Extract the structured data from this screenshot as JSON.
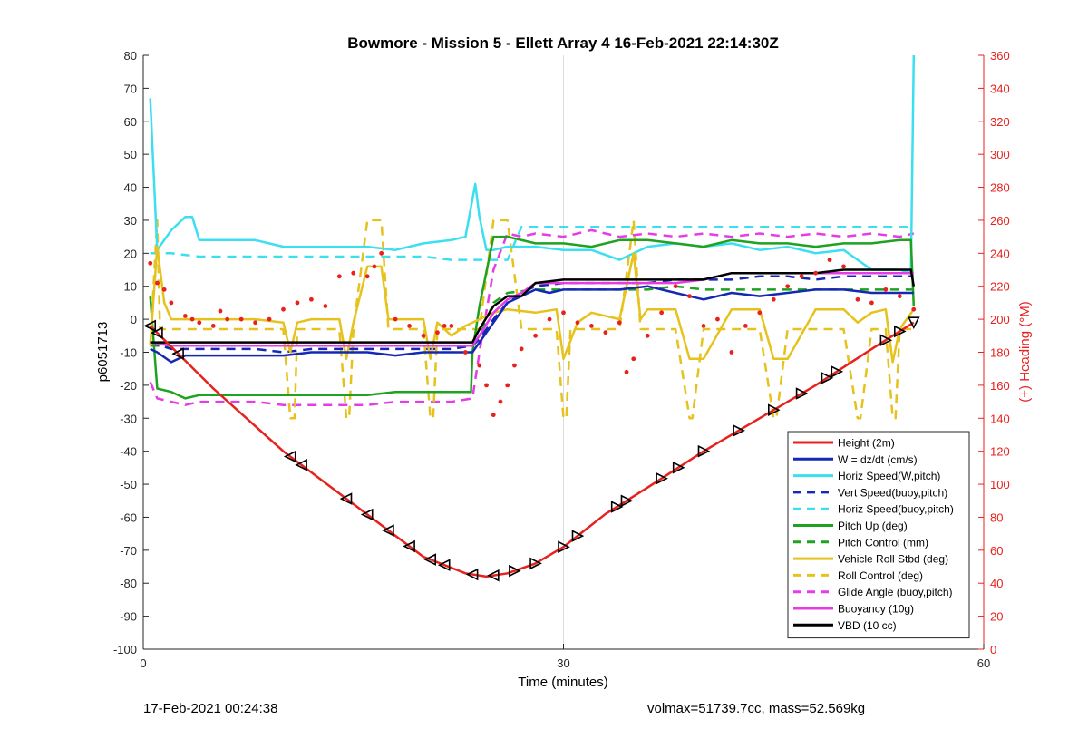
{
  "chart_data": {
    "type": "line",
    "title": "Bowmore - Mission 5 - Ellett Array 4 16-Feb-2021 22:14:30Z",
    "xlabel": "Time (minutes)",
    "ylabel": "p6051713",
    "y2label": "(+) Heading (°M)",
    "xlim": [
      0,
      60
    ],
    "ylim": [
      -100,
      80
    ],
    "y2lim": [
      0,
      360
    ],
    "xticks": [
      "0",
      "30",
      "60"
    ],
    "yticks": [
      "80",
      "70",
      "60",
      "50",
      "40",
      "30",
      "20",
      "10",
      "0",
      "-10",
      "-20",
      "-30",
      "-40",
      "-50",
      "-60",
      "-70",
      "-80",
      "-90",
      "-100"
    ],
    "y2ticks": [
      "360",
      "340",
      "320",
      "300",
      "280",
      "260",
      "240",
      "220",
      "200",
      "180",
      "160",
      "140",
      "120",
      "100",
      "80",
      "60",
      "40",
      "20",
      "0"
    ],
    "grid": "x-only",
    "legend_position": "bottom-right",
    "colors": {
      "axis_right": "#e8211d",
      "height": "#e8211d",
      "w": "#1428b4",
      "horiz": "#3cdff0",
      "pitch": "#1fa21f",
      "roll": "#e6c21e",
      "glide": "#e63ce6",
      "vbd": "#000000",
      "heading": "#e8211d"
    },
    "series": [
      {
        "name": "Height (2m)",
        "style": "solid",
        "color": "#e8211d",
        "x": [
          0.5,
          5,
          10,
          15,
          20,
          23,
          24.5,
          26,
          28,
          30,
          33,
          36,
          40,
          44,
          48,
          52,
          55
        ],
        "y": [
          -2,
          -21,
          -40,
          -56,
          -72,
          -77,
          -78,
          -77,
          -74,
          -69,
          -59,
          -51,
          -40,
          -30,
          -20,
          -9,
          -1
        ]
      },
      {
        "name": "W = dz/dt (cm/s)",
        "style": "solid",
        "color": "#1428b4",
        "x": [
          0.5,
          1,
          2,
          3,
          4,
          6,
          8,
          10,
          12,
          14,
          16,
          18,
          20,
          22,
          23.5,
          24,
          25,
          26,
          27,
          28,
          29,
          30,
          32,
          34,
          36,
          38,
          40,
          42,
          44,
          46,
          48,
          50,
          52,
          54,
          55
        ],
        "y": [
          -9,
          -10,
          -13,
          -11,
          -11,
          -11,
          -11,
          -11,
          -10,
          -10,
          -10,
          -11,
          -10,
          -10,
          -10,
          -7,
          -1,
          5,
          7,
          9,
          8,
          9,
          9,
          9,
          10,
          8,
          6,
          8,
          7,
          8,
          9,
          9,
          8,
          8,
          8
        ]
      },
      {
        "name": "Horiz Speed(W,pitch)",
        "style": "solid",
        "color": "#3cdff0",
        "x": [
          0.5,
          1,
          2,
          3,
          3.5,
          4,
          6,
          8,
          10,
          12,
          14,
          16,
          18,
          20,
          22,
          23,
          23.7,
          24,
          24.5,
          25,
          26,
          28,
          30,
          32,
          34,
          36,
          38,
          40,
          42,
          44,
          46,
          48,
          50,
          52,
          54,
          54.8,
          55
        ],
        "y": [
          67,
          21,
          27,
          31,
          31,
          24,
          24,
          24,
          22,
          22,
          22,
          22,
          21,
          23,
          24,
          25,
          41,
          31,
          21,
          21,
          22,
          22,
          21,
          21,
          18,
          22,
          23,
          22,
          23,
          21,
          22,
          20,
          21,
          15,
          15,
          14,
          80
        ]
      },
      {
        "name": "Vert Speed(buoy,pitch)",
        "style": "dash",
        "color": "#1428b4",
        "x": [
          0.5,
          2,
          4,
          6,
          8,
          10,
          12,
          14,
          16,
          18,
          20,
          22,
          23.5,
          24,
          25,
          26,
          27,
          28,
          30,
          32,
          34,
          36,
          38,
          40,
          42,
          44,
          46,
          48,
          50,
          52,
          54,
          55
        ],
        "y": [
          -7,
          -9,
          -9,
          -9,
          -9,
          -10,
          -9,
          -9,
          -9,
          -9,
          -9,
          -9,
          -8,
          -6,
          0,
          5,
          8,
          10,
          11,
          11,
          11,
          11,
          12,
          12,
          12,
          13,
          13,
          12,
          13,
          13,
          13,
          13
        ]
      },
      {
        "name": "Horiz Speed(buoy,pitch)",
        "style": "dash",
        "color": "#3cdff0",
        "x": [
          0.5,
          2,
          4,
          6,
          8,
          10,
          12,
          14,
          16,
          18,
          20,
          22,
          23.5,
          24,
          25,
          26,
          27,
          28,
          30,
          32,
          34,
          36,
          38,
          40,
          42,
          44,
          46,
          48,
          50,
          52,
          54,
          55
        ],
        "y": [
          20,
          20,
          19,
          19,
          19,
          19,
          19,
          19,
          19,
          19,
          19,
          18,
          18,
          18,
          18,
          18,
          28,
          28,
          28,
          28,
          28,
          28,
          28,
          28,
          28,
          28,
          28,
          28,
          28,
          28,
          28,
          28
        ]
      },
      {
        "name": "Pitch Up (deg)",
        "style": "solid",
        "color": "#1fa21f",
        "x": [
          0.5,
          1,
          2,
          3,
          4,
          6,
          8,
          10,
          12,
          14,
          16,
          18,
          20,
          22,
          23,
          23.4,
          23.5,
          24,
          25,
          25.5,
          26,
          28,
          30,
          32,
          34,
          36,
          38,
          40,
          42,
          44,
          46,
          48,
          50,
          52,
          54,
          54.8,
          55
        ],
        "y": [
          7,
          -21,
          -22,
          -24,
          -23,
          -23,
          -23,
          -23,
          -23,
          -23,
          -23,
          -22,
          -22,
          -22,
          -22,
          -22,
          -10,
          4,
          25,
          25,
          25,
          23,
          23,
          22,
          24,
          24,
          23,
          22,
          24,
          23,
          23,
          22,
          23,
          23,
          24,
          24,
          4
        ]
      },
      {
        "name": "Pitch Control (mm)",
        "style": "dash",
        "color": "#1fa21f",
        "x": [
          0.5,
          2,
          4,
          6,
          8,
          10,
          12,
          14,
          16,
          18,
          20,
          22,
          23,
          23.5,
          24,
          25,
          26,
          28,
          30,
          32,
          34,
          36,
          38,
          40,
          42,
          44,
          46,
          48,
          50,
          52,
          54,
          55
        ],
        "y": [
          -8,
          -8,
          -8,
          -8,
          -8,
          -8,
          -8,
          -8,
          -8,
          -8,
          -8,
          -8,
          -8,
          -8,
          -5,
          5,
          8,
          9,
          9,
          9,
          9,
          9,
          10,
          9,
          9,
          9,
          9,
          9,
          9,
          9,
          9,
          9
        ]
      },
      {
        "name": "Vehicle Roll Stbd (deg)",
        "style": "solid",
        "color": "#e6c21e",
        "x": [
          0.5,
          1,
          1.5,
          2,
          4,
          6,
          8,
          10,
          10.5,
          11,
          12,
          14,
          14.5,
          15,
          16,
          17,
          17.5,
          18,
          20,
          20.5,
          21,
          22,
          23,
          24,
          25,
          26,
          28,
          29.5,
          30,
          31,
          32,
          34,
          35,
          35.5,
          36,
          38,
          39,
          40,
          42,
          44,
          45,
          45.5,
          46,
          48,
          50,
          51,
          52,
          53,
          53.5,
          54,
          55
        ],
        "y": [
          -8,
          22,
          5,
          0,
          0,
          0,
          0,
          -1,
          -10,
          -1,
          0,
          0,
          -12,
          -1,
          16,
          16,
          0,
          0,
          0,
          -12,
          -1,
          -5,
          -2,
          0,
          2,
          3,
          2,
          3,
          -12,
          -1,
          2,
          0,
          20,
          0,
          3,
          3,
          -12,
          -12,
          3,
          3,
          -12,
          -12,
          -12,
          3,
          3,
          -1,
          2,
          3,
          -13,
          -3,
          3
        ]
      },
      {
        "name": "Roll Control (deg)",
        "style": "dash",
        "color": "#e6c21e",
        "x": [
          0.5,
          1,
          1.2,
          1.5,
          2,
          4,
          6,
          8,
          10,
          10.5,
          10.8,
          11,
          12,
          14,
          14.5,
          14.7,
          15,
          16,
          17,
          17.5,
          18,
          20,
          20.5,
          20.7,
          21,
          22,
          23,
          24,
          25,
          26,
          27,
          28,
          29.5,
          30,
          30.2,
          30.5,
          31,
          32,
          34,
          35,
          35.5,
          36,
          38,
          39,
          39.2,
          40,
          42,
          44,
          45,
          45.2,
          46,
          48,
          50,
          51,
          51.2,
          52,
          53,
          53.5,
          53.7,
          54,
          55
        ],
        "y": [
          -8,
          30,
          -3,
          -3,
          -3,
          -3,
          -3,
          -3,
          -3,
          -30,
          -30,
          -3,
          -3,
          -3,
          -30,
          -30,
          -3,
          30,
          30,
          -3,
          -3,
          -3,
          -30,
          -30,
          -3,
          -3,
          -3,
          -3,
          30,
          30,
          -3,
          -3,
          -3,
          -30,
          -30,
          -3,
          -3,
          -3,
          -3,
          30,
          -3,
          -3,
          -3,
          -30,
          -30,
          -3,
          -3,
          -3,
          -30,
          -30,
          -3,
          -3,
          -3,
          -30,
          -30,
          -3,
          -3,
          -30,
          -30,
          -3,
          -3
        ]
      },
      {
        "name": "Glide Angle (buoy,pitch)",
        "style": "dash",
        "color": "#e63ce6",
        "x": [
          0.5,
          1,
          2,
          3,
          4,
          6,
          8,
          10,
          12,
          14,
          16,
          18,
          20,
          22,
          23.5,
          24,
          25,
          26,
          27,
          28,
          30,
          32,
          34,
          36,
          38,
          40,
          42,
          44,
          46,
          48,
          50,
          52,
          54,
          55
        ],
        "y": [
          -19,
          -24,
          -25,
          -26,
          -25,
          -25,
          -25,
          -26,
          -26,
          -26,
          -26,
          -25,
          -25,
          -25,
          -24,
          -10,
          15,
          26,
          25,
          26,
          25,
          27,
          25,
          26,
          25,
          26,
          25,
          26,
          25,
          26,
          25,
          26,
          25,
          26
        ]
      },
      {
        "name": "Buoyancy (10g)",
        "style": "solid",
        "color": "#e63ce6",
        "x": [
          0.5,
          2,
          4,
          6,
          8,
          10,
          12,
          14,
          16,
          18,
          20,
          22,
          23.5,
          24,
          25,
          26,
          27,
          28,
          30,
          32,
          34,
          36,
          38,
          40,
          41,
          42,
          44,
          46,
          48,
          50,
          52,
          54,
          55
        ],
        "y": [
          -7,
          -8,
          -8,
          -8,
          -8,
          -8,
          -8,
          -8,
          -8,
          -8,
          -8,
          -8,
          -8,
          -5,
          2,
          6,
          8,
          11,
          11,
          11,
          11,
          11,
          11,
          12,
          13,
          14,
          14,
          14,
          14,
          14,
          14,
          14,
          14
        ]
      },
      {
        "name": "VBD (10 cc)",
        "style": "solid",
        "color": "#000000",
        "x": [
          0.5,
          2,
          4,
          6,
          8,
          10,
          12,
          14,
          16,
          18,
          20,
          22,
          23.5,
          24,
          25,
          26,
          27,
          28,
          30,
          32,
          34,
          36,
          38,
          40,
          41,
          42,
          44,
          46,
          48,
          50,
          52,
          54,
          54.8,
          55
        ],
        "y": [
          -7,
          -7,
          -7,
          -7,
          -7,
          -7,
          -7,
          -7,
          -7,
          -7,
          -7,
          -7,
          -7,
          -3,
          4,
          7,
          7,
          11,
          12,
          12,
          12,
          12,
          12,
          12,
          13,
          14,
          14,
          14,
          14,
          15,
          15,
          15,
          15,
          10
        ]
      }
    ],
    "heading_points": {
      "name": "Heading (°M)",
      "axis": "right",
      "color": "#e8211d",
      "x": [
        0.5,
        1,
        1.5,
        2,
        3,
        3.5,
        4,
        5,
        5.5,
        6,
        7,
        8,
        9,
        10,
        11,
        12,
        13,
        14,
        15,
        16,
        16.5,
        17,
        18,
        19,
        20,
        21,
        21.5,
        22,
        23,
        24,
        24.5,
        25,
        25.5,
        26,
        26.5,
        27,
        28,
        29,
        30,
        31,
        32,
        33,
        34,
        34.5,
        35,
        36,
        37,
        38,
        39,
        40,
        41,
        42,
        43,
        44,
        45,
        46,
        47,
        48,
        49,
        50,
        51,
        52,
        53,
        54,
        55
      ],
      "y": [
        234,
        222,
        218,
        210,
        202,
        200,
        198,
        196,
        205,
        200,
        200,
        198,
        200,
        206,
        210,
        212,
        208,
        226,
        228,
        226,
        232,
        240,
        200,
        196,
        190,
        192,
        196,
        196,
        180,
        172,
        160,
        142,
        150,
        160,
        172,
        182,
        190,
        200,
        204,
        198,
        196,
        192,
        198,
        168,
        176,
        190,
        204,
        220,
        214,
        196,
        200,
        180,
        196,
        204,
        212,
        220,
        226,
        228,
        236,
        232,
        212,
        210,
        218,
        214,
        206
      ]
    },
    "descent_markers_x": [
      0.5,
      1,
      2.5,
      10.5,
      11.3,
      14.5,
      16,
      17.5,
      19,
      20.5,
      21.5,
      23.5,
      25
    ],
    "ascent_markers_x": [
      26.5,
      28,
      30,
      31,
      33.8,
      34.5,
      37,
      38.2,
      40,
      42.5,
      45,
      47,
      48.8,
      49.5,
      53,
      54,
      55
    ]
  },
  "footer": {
    "left_timestamp": "17-Feb-2021 00:24:38",
    "right_info": "volmax=51739.7cc, mass=52.569kg"
  }
}
